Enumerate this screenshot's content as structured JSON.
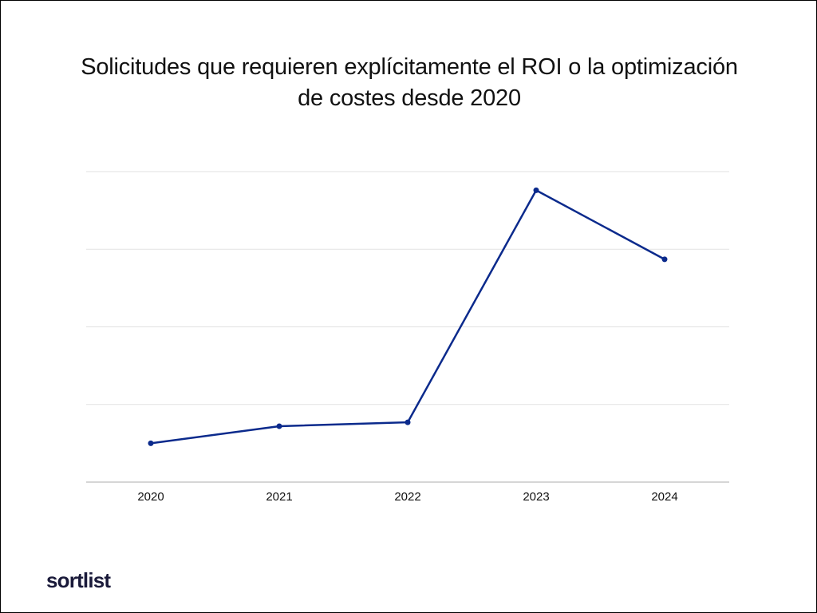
{
  "title": {
    "line1": "Solicitudes que requieren explícitamente el ROI o la optimización",
    "line2": "de costes desde 2020"
  },
  "brand": {
    "logo_text": "sortlist"
  },
  "colors": {
    "line": "#0b2a8c",
    "grid": "#e2e2e2",
    "axis": "#c8c8c8",
    "tick_text": "#111111"
  },
  "chart_data": {
    "type": "line",
    "title": "Solicitudes que requieren explícitamente el ROI o la optimización de costes desde 2020",
    "xlabel": "",
    "ylabel": "",
    "categories": [
      "2020",
      "2021",
      "2022",
      "2023",
      "2024"
    ],
    "series": [
      {
        "values": [
          0.5,
          0.72,
          0.77,
          3.76,
          2.87
        ]
      }
    ],
    "ylim": [
      0,
      4
    ],
    "y_gridlines": [
      1,
      2,
      3,
      4
    ],
    "y_tick_labels_visible": false,
    "grid": true,
    "legend": "none"
  }
}
